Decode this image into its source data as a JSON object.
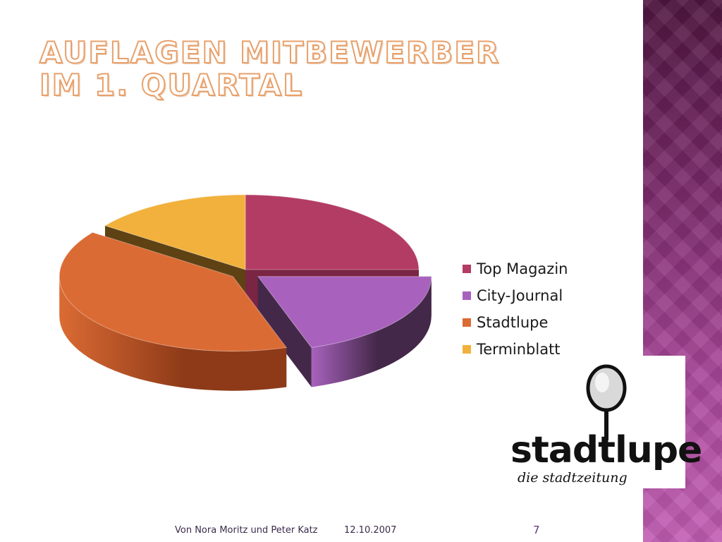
{
  "slide": {
    "title_line1": "Auflagen Mitbewerber",
    "title_line2": "im 1. Quartal",
    "footer_authors": "Von Nora Moritz und Peter Katz",
    "footer_date": "12.10.2007",
    "page_number": "7"
  },
  "logo": {
    "word": "stadtlupe",
    "tagline": "die stadtzeitung"
  },
  "chart_data": {
    "type": "pie",
    "style": "3d-exploded",
    "categories": [
      "Top Magazin",
      "City-Journal",
      "Stadtlupe",
      "Terminblatt"
    ],
    "values": [
      25,
      20,
      40,
      15
    ],
    "colors": [
      "#b33c64",
      "#a862bd",
      "#db6b34",
      "#f2b13c"
    ],
    "side_colors": [
      "#7a2543",
      "#442849",
      "#8e3a18",
      "#5e4214"
    ],
    "legend_position": "right"
  }
}
